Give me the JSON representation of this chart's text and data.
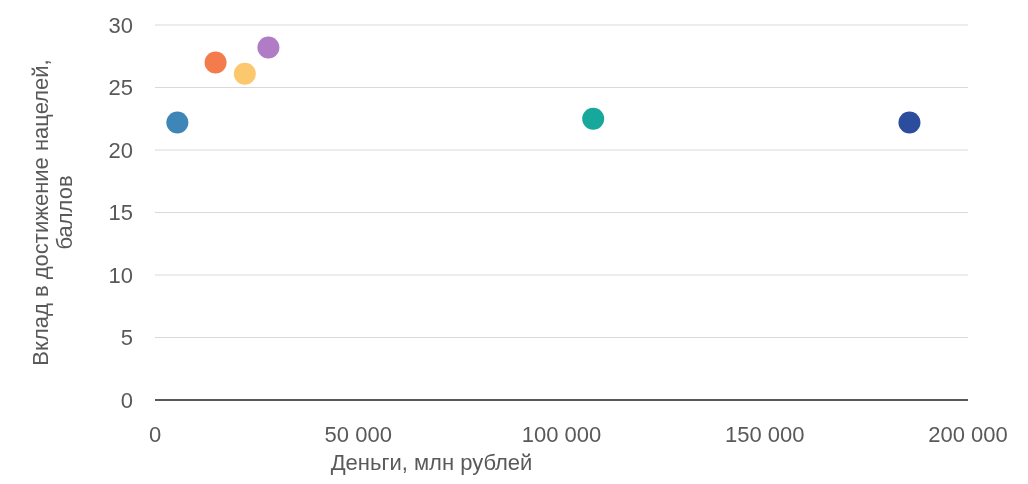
{
  "chart_data": {
    "type": "scatter",
    "xlabel": "Деньги, млн рублей",
    "ylabel": "Вклад в достижение нацелей, баллов",
    "x": [
      5500,
      14900,
      22100,
      27900,
      107800,
      185600
    ],
    "values": [
      22.2,
      27.0,
      26.1,
      28.2,
      22.5,
      22.2
    ],
    "colors": [
      "#3f86b8",
      "#f47b4b",
      "#fbc86e",
      "#b07cc6",
      "#16a89a",
      "#2c4d9e"
    ],
    "xlim": [
      0,
      200000
    ],
    "xticks": [
      0,
      {
        "value": 50000,
        "label": "50 000"
      },
      {
        "value": 100000,
        "label": "100 000"
      },
      {
        "value": 150000,
        "label": "150 000"
      },
      {
        "value": 200000,
        "label": "200 000"
      }
    ],
    "ylim": [
      0,
      30
    ],
    "yticks": [
      0,
      5,
      10,
      15,
      20,
      25,
      30
    ],
    "grid": "y",
    "marker": "circle"
  }
}
